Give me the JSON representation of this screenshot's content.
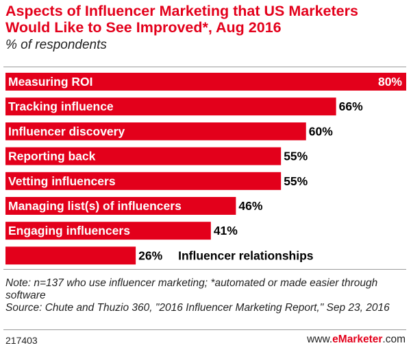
{
  "header": {
    "title": "Aspects of Influencer Marketing that US Marketers Would Like to See Improved*, Aug 2016",
    "subtitle": "% of respondents"
  },
  "chart_data": {
    "type": "bar",
    "orientation": "horizontal",
    "categories": [
      "Measuring ROI",
      "Tracking influence",
      "Influencer discovery",
      "Reporting back",
      "Vetting influencers",
      "Managing list(s) of influencers",
      "Engaging influencers",
      "Influencer relationships"
    ],
    "values": [
      80,
      66,
      60,
      55,
      55,
      46,
      41,
      26
    ],
    "value_labels": [
      "80%",
      "66%",
      "60%",
      "55%",
      "55%",
      "46%",
      "41%",
      "26%"
    ],
    "unit": "%",
    "xlim": [
      0,
      80
    ],
    "bar_color": "#e3001b",
    "grid": false,
    "legend": "none"
  },
  "footer": {
    "note": "Note: n=137 who use influencer marketing; *automated or made easier through software",
    "source": "Source: Chute and Thuzio 360, \"2016 Influencer Marketing Report,\" Sep 23, 2016",
    "chart_id": "217403",
    "brand_prefix": "www.",
    "brand_name": "eMarketer",
    "brand_suffix": ".com"
  }
}
